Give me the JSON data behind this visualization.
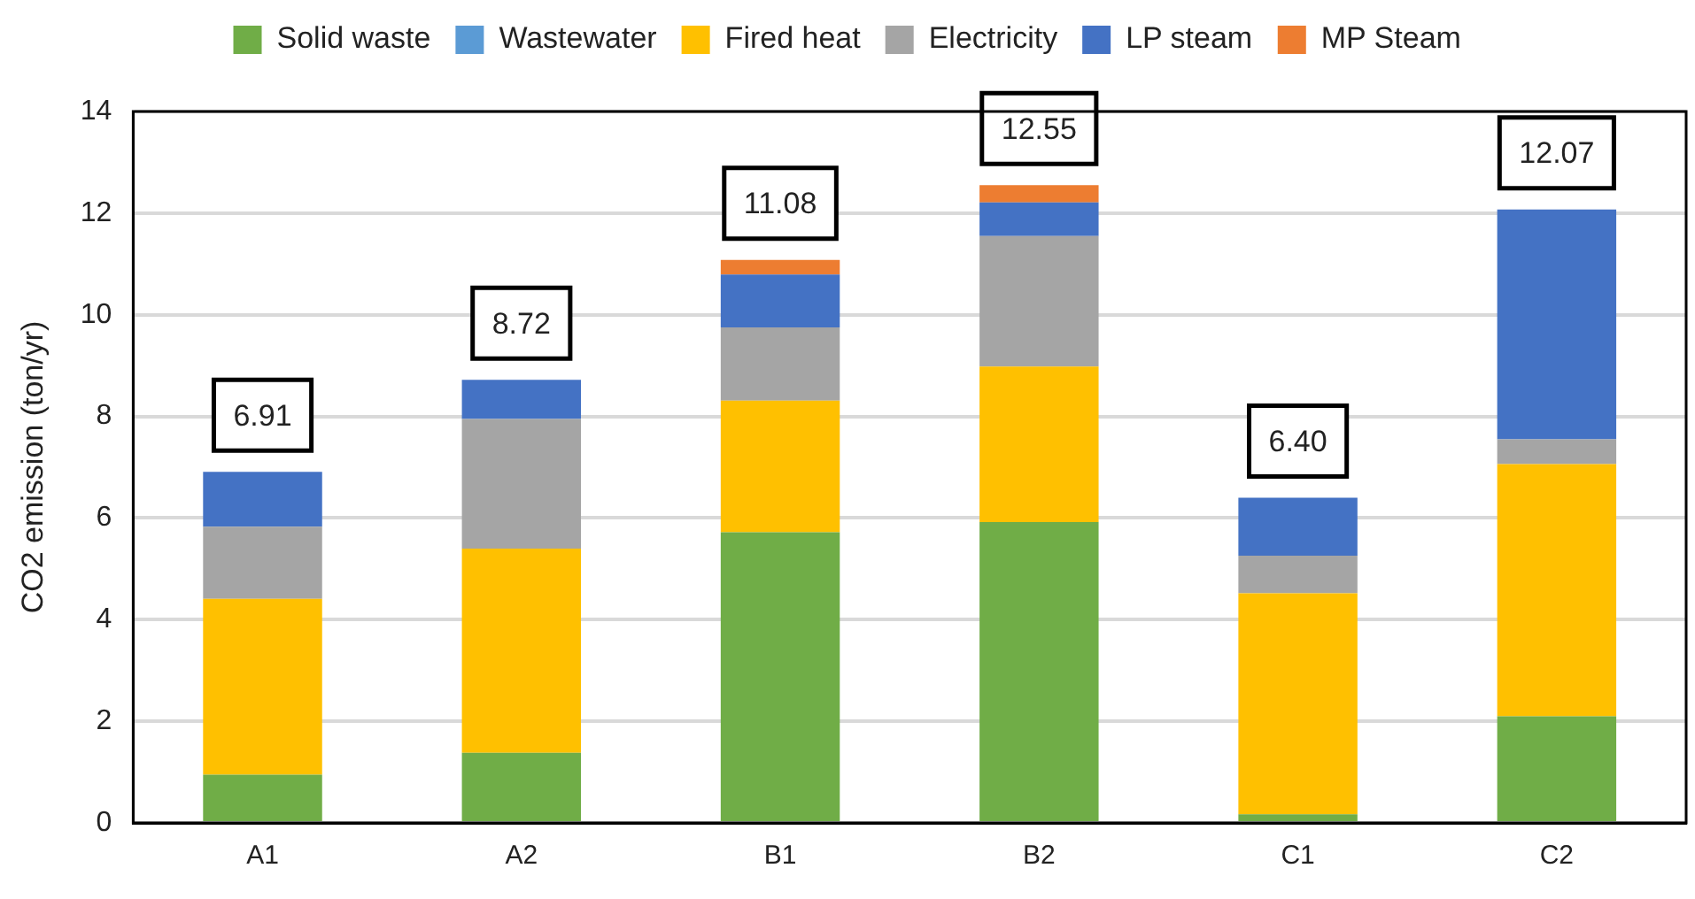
{
  "chart_data": {
    "type": "bar",
    "stacked": true,
    "ylabel": "CO2 emission (ton/yr)",
    "categories": [
      "A1",
      "A2",
      "B1",
      "B2",
      "C1",
      "C2"
    ],
    "series": [
      {
        "name": "Solid waste",
        "color": "#70ad47",
        "values": [
          0.95,
          1.38,
          5.72,
          5.92,
          0.17,
          2.1
        ]
      },
      {
        "name": "Wastewater",
        "color": "#5b9bd5",
        "values": [
          0,
          0,
          0,
          0,
          0,
          0
        ]
      },
      {
        "name": "Fired heat",
        "color": "#ffc000",
        "values": [
          3.46,
          4.02,
          2.59,
          3.06,
          4.35,
          4.96
        ]
      },
      {
        "name": "Electricity",
        "color": "#a5a5a5",
        "values": [
          1.42,
          2.55,
          1.44,
          2.57,
          0.74,
          0.49
        ]
      },
      {
        "name": "LP steam",
        "color": "#4472c4",
        "values": [
          1.08,
          0.77,
          1.04,
          0.66,
          1.14,
          4.52
        ]
      },
      {
        "name": "MP Steam",
        "color": "#ed7d31",
        "values": [
          0,
          0,
          0.29,
          0.34,
          0,
          0
        ]
      }
    ],
    "totals": [
      "6.91",
      "8.72",
      "11.08",
      "12.55",
      "6.40",
      "12.07"
    ],
    "ylim": [
      0,
      14
    ],
    "yticks": [
      0,
      2,
      4,
      6,
      8,
      10,
      12,
      14
    ],
    "grid": "y",
    "legend": "top"
  }
}
